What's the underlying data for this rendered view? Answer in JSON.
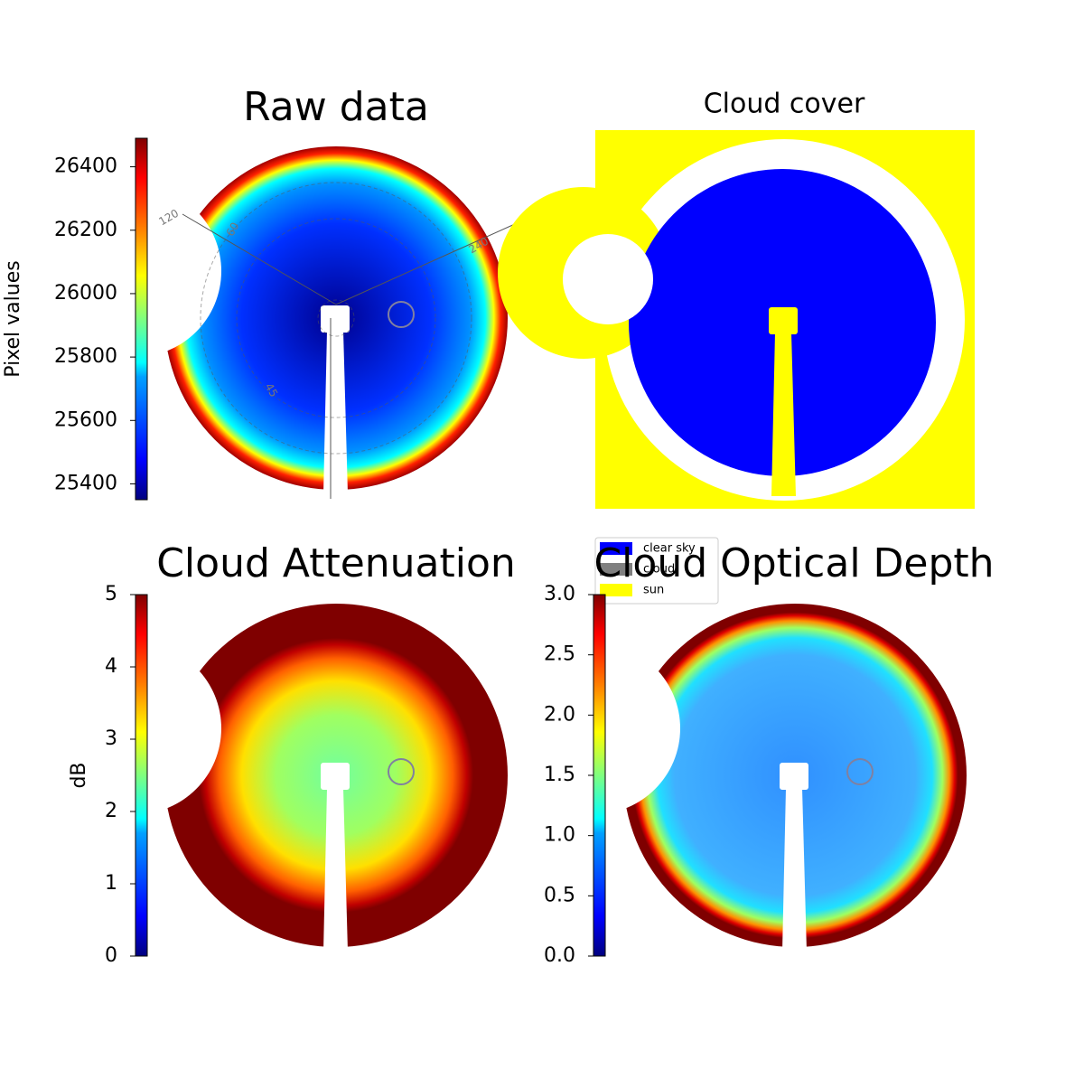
{
  "chart_data": [
    {
      "type": "image",
      "title": "Raw data",
      "colormap": "jet",
      "ylabel": "Pixel values",
      "ylim": [
        25350,
        26490
      ],
      "yticks": [
        25400,
        25600,
        25800,
        26000,
        26200,
        26400
      ],
      "annotations": [
        "120",
        "60",
        "240",
        "45"
      ]
    },
    {
      "type": "classification",
      "title": "Cloud cover",
      "categories": [
        "clear sky",
        "cloud",
        "sun"
      ],
      "colors": [
        "#0000ff",
        "#808080",
        "#ffff00"
      ]
    },
    {
      "type": "image",
      "title": "Cloud Attenuation",
      "colormap": "jet",
      "ylabel": "dB",
      "ylim": [
        0,
        5
      ],
      "yticks": [
        0,
        1,
        2,
        3,
        4,
        5
      ]
    },
    {
      "type": "image",
      "title": "Cloud Optical Depth",
      "colormap": "jet",
      "ylim": [
        0,
        3
      ],
      "yticks": [
        {
          "value": 0,
          "label": "0.0"
        },
        0.5,
        {
          "value": 1,
          "label": "1.0"
        },
        1.5,
        {
          "value": 2,
          "label": "2.0"
        },
        2.5,
        {
          "value": 3,
          "label": "3.0"
        }
      ]
    }
  ]
}
